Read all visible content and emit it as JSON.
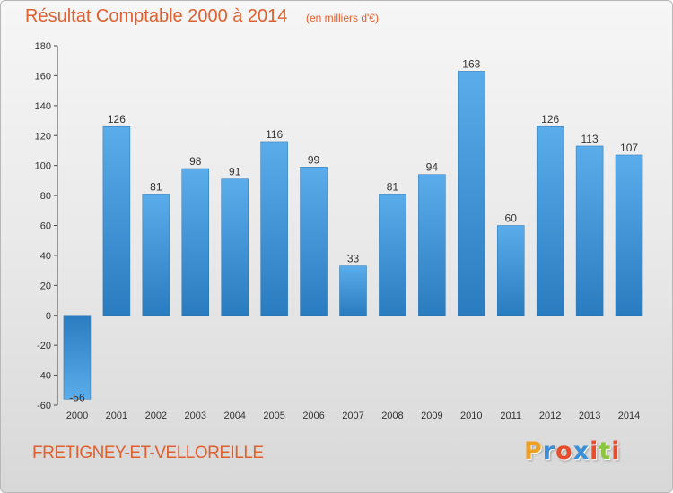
{
  "header": {
    "title": "Résultat Comptable 2000 à 2014",
    "unit": "(en milliers d'€)"
  },
  "footer": {
    "commune": "FRETIGNEY-ET-VELLOREILLE",
    "logo_letters": [
      "P",
      "r",
      "o",
      "x",
      "i",
      "t",
      "i"
    ],
    "logo_colors": [
      "#f0a020",
      "#3a8fd8",
      "#e84c2a",
      "#3a8fd8",
      "#e84c2a",
      "#8cc63f",
      "#e84c2a"
    ]
  },
  "chart_data": {
    "type": "bar",
    "title": "Résultat Comptable 2000 à 2014",
    "subtitle": "(en milliers d'€)",
    "categories": [
      "2000",
      "2001",
      "2002",
      "2003",
      "2004",
      "2005",
      "2006",
      "2007",
      "2008",
      "2009",
      "2010",
      "2011",
      "2012",
      "2013",
      "2014"
    ],
    "values": [
      -56,
      126,
      81,
      98,
      91,
      116,
      99,
      33,
      81,
      94,
      163,
      60,
      126,
      113,
      107
    ],
    "data_labels": [
      "-56",
      "126",
      "81",
      "98",
      "91",
      "116",
      "99",
      "33",
      "81",
      "94",
      "163",
      "60",
      "126",
      "113",
      "107"
    ],
    "ylim": [
      -60,
      180
    ],
    "yticks": [
      -60,
      -40,
      -20,
      0,
      20,
      40,
      60,
      80,
      100,
      120,
      140,
      160,
      180
    ],
    "grid": false,
    "bar_color": "#3a8fd8"
  }
}
